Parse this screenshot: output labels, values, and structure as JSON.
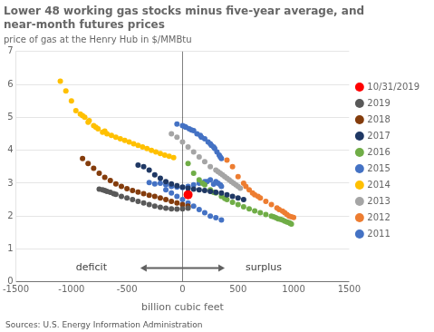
{
  "chart_data": {
    "type": "scatter",
    "title": "Lower 48 working gas stocks minus five-year average, and\nnear-month futures prices",
    "subtitle": "price of gas at the Henry Hub in $/MMBtu",
    "xlabel": "billion cubic feet",
    "source": "Sources: U.S. Energy Information Administration",
    "xlim": [
      -1500,
      1500
    ],
    "ylim": [
      0,
      7
    ],
    "xticks": [
      -1500,
      -1000,
      -500,
      0,
      500,
      1000,
      1500
    ],
    "yticks": [
      0,
      1,
      2,
      3,
      4,
      5,
      6,
      7
    ],
    "grid": "y",
    "legend": "right",
    "series": [
      {
        "name": "2011",
        "color": "#4472C4",
        "x": [
          -50,
          0,
          30,
          60,
          100,
          130,
          160,
          200,
          230,
          260,
          290,
          310,
          330,
          350,
          250,
          280,
          170,
          80,
          20,
          340
        ],
        "values": [
          4.8,
          4.75,
          4.7,
          4.65,
          4.6,
          4.5,
          4.45,
          4.35,
          4.25,
          4.15,
          4.05,
          3.95,
          3.85,
          3.75,
          4.2,
          4.1,
          4.4,
          4.62,
          4.72,
          3.8
        ]
      },
      {
        "name": "2012",
        "color": "#ED7D31",
        "x": [
          400,
          450,
          500,
          550,
          600,
          650,
          700,
          750,
          800,
          850,
          870,
          900,
          920,
          940,
          960,
          980,
          1000,
          570,
          630,
          680
        ],
        "values": [
          3.7,
          3.5,
          3.2,
          3.0,
          2.8,
          2.65,
          2.55,
          2.45,
          2.35,
          2.25,
          2.2,
          2.15,
          2.1,
          2.05,
          2.0,
          1.98,
          1.96,
          2.9,
          2.7,
          2.6
        ]
      },
      {
        "name": "2013",
        "color": "#A5A5A5",
        "x": [
          -100,
          -50,
          0,
          50,
          100,
          150,
          200,
          250,
          300,
          320,
          340,
          360,
          380,
          400,
          420,
          440,
          460,
          480,
          500,
          520
        ],
        "values": [
          4.5,
          4.4,
          4.25,
          4.1,
          3.95,
          3.8,
          3.65,
          3.5,
          3.4,
          3.35,
          3.3,
          3.25,
          3.2,
          3.15,
          3.1,
          3.05,
          3.0,
          2.95,
          2.9,
          2.85
        ]
      },
      {
        "name": "2014",
        "color": "#FFC000",
        "x": [
          -1100,
          -1050,
          -1000,
          -960,
          -920,
          -880,
          -840,
          -800,
          -760,
          -720,
          -680,
          -640,
          -600,
          -560,
          -520,
          -480,
          -440,
          -400,
          -360,
          -320,
          -280,
          -240,
          -200,
          -160,
          -120,
          -80,
          -900,
          -850,
          -780,
          -700
        ],
        "values": [
          6.1,
          5.8,
          5.5,
          5.2,
          5.1,
          5.0,
          4.9,
          4.75,
          4.65,
          4.55,
          4.5,
          4.45,
          4.4,
          4.35,
          4.3,
          4.25,
          4.2,
          4.15,
          4.1,
          4.05,
          4.0,
          3.95,
          3.9,
          3.85,
          3.82,
          3.78,
          5.05,
          4.85,
          4.7,
          4.58
        ]
      },
      {
        "name": "2015",
        "color": "#4472C4",
        "x": [
          -200,
          -150,
          -100,
          -50,
          0,
          50,
          100,
          150,
          200,
          250,
          300,
          320,
          340,
          350,
          200,
          250,
          300,
          350,
          150,
          100,
          50,
          0,
          -50,
          -100,
          -150,
          -250,
          -300,
          280,
          220
        ],
        "values": [
          3.0,
          2.95,
          2.9,
          2.88,
          2.87,
          2.9,
          2.95,
          3.0,
          3.05,
          3.1,
          3.05,
          3.0,
          2.95,
          2.9,
          2.1,
          2.0,
          1.95,
          1.88,
          2.2,
          2.3,
          2.4,
          2.5,
          2.6,
          2.7,
          2.8,
          2.98,
          3.02,
          2.97,
          3.05
        ]
      },
      {
        "name": "2016",
        "color": "#70AD47",
        "x": [
          50,
          100,
          150,
          200,
          250,
          300,
          350,
          400,
          450,
          500,
          550,
          600,
          650,
          700,
          750,
          800,
          820,
          840,
          860,
          880,
          900,
          920,
          940,
          960,
          970,
          980,
          180,
          280,
          380
        ],
        "values": [
          3.6,
          3.3,
          3.1,
          2.95,
          2.8,
          2.7,
          2.6,
          2.5,
          2.42,
          2.35,
          2.28,
          2.22,
          2.16,
          2.1,
          2.05,
          2.0,
          1.98,
          1.95,
          1.92,
          1.9,
          1.88,
          1.85,
          1.82,
          1.8,
          1.78,
          1.76,
          3.0,
          2.72,
          2.54
        ]
      },
      {
        "name": "2017",
        "color": "#1F3864",
        "x": [
          -300,
          -250,
          -200,
          -150,
          -100,
          -50,
          0,
          50,
          100,
          150,
          200,
          250,
          300,
          350,
          400,
          -350,
          -400,
          450,
          500,
          550
        ],
        "values": [
          3.4,
          3.25,
          3.15,
          3.05,
          2.98,
          2.92,
          2.88,
          2.85,
          2.82,
          2.8,
          2.78,
          2.75,
          2.72,
          2.7,
          2.65,
          3.5,
          3.55,
          2.6,
          2.55,
          2.5
        ]
      },
      {
        "name": "2018",
        "color": "#843C0C",
        "x": [
          -850,
          -800,
          -750,
          -700,
          -650,
          -600,
          -550,
          -500,
          -450,
          -400,
          -350,
          -300,
          -250,
          -200,
          -150,
          -100,
          -50,
          0,
          50,
          -900
        ],
        "values": [
          3.6,
          3.45,
          3.3,
          3.18,
          3.08,
          2.98,
          2.9,
          2.83,
          2.78,
          2.73,
          2.68,
          2.63,
          2.6,
          2.55,
          2.5,
          2.45,
          2.4,
          2.35,
          2.3,
          3.75
        ]
      },
      {
        "name": "2019",
        "color": "#595959",
        "x": [
          -700,
          -650,
          -600,
          -550,
          -500,
          -450,
          -400,
          -350,
          -300,
          -250,
          -200,
          -150,
          -100,
          -50,
          0,
          50,
          -750,
          -680,
          -620,
          -720
        ],
        "values": [
          2.78,
          2.72,
          2.66,
          2.6,
          2.55,
          2.5,
          2.45,
          2.4,
          2.35,
          2.3,
          2.27,
          2.24,
          2.22,
          2.21,
          2.22,
          2.24,
          2.82,
          2.75,
          2.68,
          2.8
        ]
      },
      {
        "name": "10/31/2019",
        "color": "#FF0000",
        "x": [
          50
        ],
        "values": [
          2.65
        ]
      }
    ],
    "annotations": [
      {
        "text": "deficit",
        "x": -820,
        "y": 0.42
      },
      {
        "text": "surplus",
        "x": 730,
        "y": 0.42
      }
    ],
    "arrow": {
      "x_from": -380,
      "x_to": 380,
      "y": 0.42
    }
  }
}
